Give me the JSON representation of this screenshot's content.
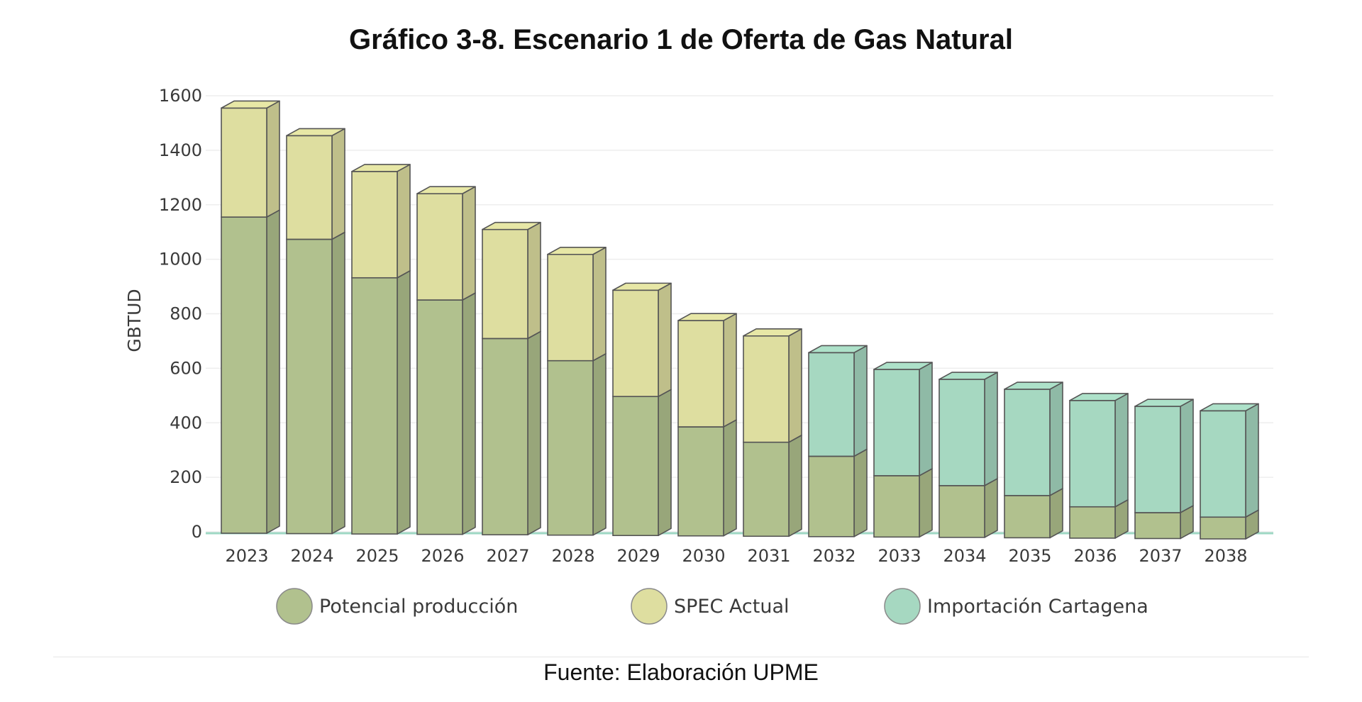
{
  "title": "Gráfico 3-8. Escenario 1 de Oferta de Gas Natural",
  "source": "Fuente: Elaboración UPME",
  "colors": {
    "potencial": "#b1c18e",
    "spec": "#dedea0",
    "importacion": "#a6d8c1",
    "edge": "#555555",
    "grid": "#eeeeee",
    "baseline": "#9fd8c4"
  },
  "chart_data": {
    "type": "bar",
    "stacked": true,
    "title": "Gráfico 3-8. Escenario 1 de Oferta de Gas Natural",
    "xlabel": "",
    "ylabel": "GBTUD",
    "ylim": [
      0,
      1600
    ],
    "yticks": [
      0,
      200,
      400,
      600,
      800,
      1000,
      1200,
      1400,
      1600
    ],
    "grid": true,
    "legend_position": "bottom",
    "categories": [
      "2023",
      "2024",
      "2025",
      "2026",
      "2027",
      "2028",
      "2029",
      "2030",
      "2031",
      "2032",
      "2033",
      "2034",
      "2035",
      "2036",
      "2037",
      "2038"
    ],
    "series": [
      {
        "name": "Potencial producción",
        "key": "potencial",
        "values": [
          1160,
          1080,
          940,
          860,
          720,
          640,
          510,
          400,
          345,
          295,
          225,
          190,
          155,
          115,
          95,
          80
        ]
      },
      {
        "name": "SPEC Actual",
        "key": "spec",
        "values": [
          400,
          380,
          390,
          390,
          400,
          390,
          390,
          390,
          390,
          0,
          0,
          0,
          0,
          0,
          0,
          0
        ]
      },
      {
        "name": "Importación Cartagena",
        "key": "importacion",
        "values": [
          0,
          0,
          0,
          0,
          0,
          0,
          0,
          0,
          0,
          380,
          390,
          390,
          390,
          390,
          390,
          390
        ]
      }
    ]
  }
}
